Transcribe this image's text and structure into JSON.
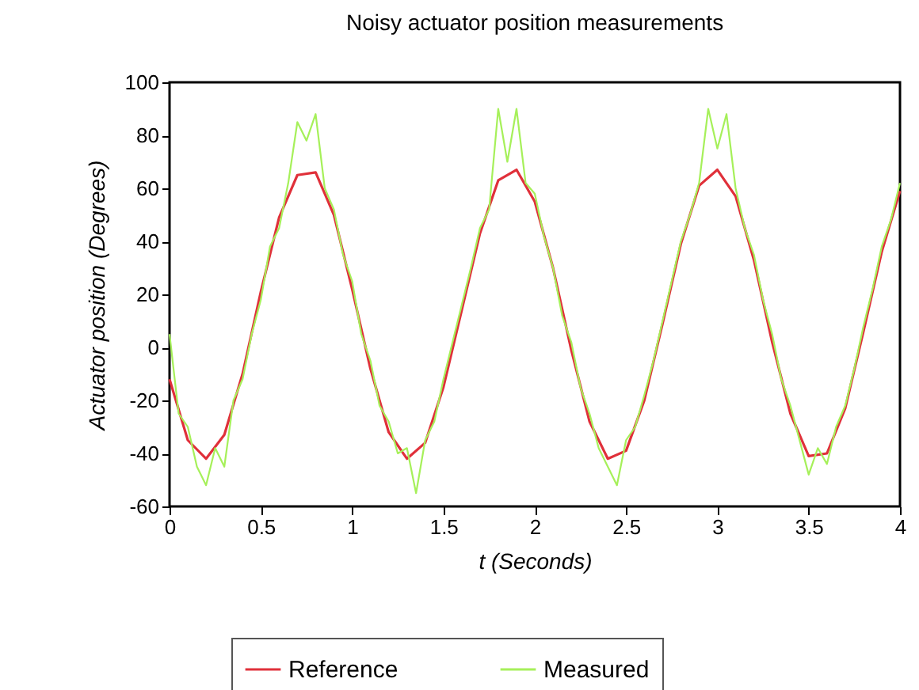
{
  "chart_data": {
    "type": "line",
    "title": "Noisy actuator position measurements",
    "xlabel": "t (Seconds)",
    "ylabel": "Actuator position (Degrees)",
    "xlim": [
      0,
      4
    ],
    "ylim": [
      -60,
      100
    ],
    "xticks": [
      0,
      0.5,
      1,
      1.5,
      2,
      2.5,
      3,
      3.5,
      4
    ],
    "yticks": [
      -60,
      -40,
      -20,
      0,
      20,
      40,
      60,
      80,
      100
    ],
    "legend": "bottom",
    "series": [
      {
        "name": "Reference",
        "color": "#e0303a",
        "x": [
          0,
          0.1,
          0.2,
          0.3,
          0.4,
          0.5,
          0.6,
          0.7,
          0.8,
          0.9,
          1,
          1.1,
          1.2,
          1.3,
          1.4,
          1.5,
          1.6,
          1.7,
          1.8,
          1.9,
          2,
          2.1,
          2.2,
          2.3,
          2.4,
          2.5,
          2.6,
          2.7,
          2.8,
          2.9,
          3,
          3.1,
          3.2,
          3.3,
          3.4,
          3.5,
          3.6,
          3.7,
          3.8,
          3.9,
          4
        ],
        "values": [
          -12,
          -35,
          -42,
          -33,
          -10,
          21,
          49,
          65,
          66,
          50,
          22,
          -8,
          -32,
          -42,
          -36,
          -15,
          14,
          43,
          63,
          67,
          55,
          30,
          -1,
          -28,
          -42,
          -39,
          -20,
          9,
          39,
          61,
          67,
          57,
          33,
          2,
          -25,
          -41,
          -40,
          -23,
          6,
          36,
          59
        ]
      },
      {
        "name": "Measured",
        "color": "#a6f05a",
        "x": [
          0,
          0.05,
          0.1,
          0.15,
          0.2,
          0.25,
          0.3,
          0.35,
          0.4,
          0.45,
          0.5,
          0.55,
          0.6,
          0.65,
          0.7,
          0.75,
          0.8,
          0.85,
          0.9,
          0.95,
          1,
          1.05,
          1.1,
          1.15,
          1.2,
          1.25,
          1.3,
          1.35,
          1.4,
          1.45,
          1.5,
          1.55,
          1.6,
          1.65,
          1.7,
          1.75,
          1.8,
          1.85,
          1.9,
          1.95,
          2,
          2.05,
          2.1,
          2.15,
          2.2,
          2.25,
          2.3,
          2.35,
          2.4,
          2.45,
          2.5,
          2.55,
          2.6,
          2.65,
          2.7,
          2.75,
          2.8,
          2.85,
          2.9,
          2.95,
          3,
          3.05,
          3.1,
          3.15,
          3.2,
          3.25,
          3.3,
          3.35,
          3.4,
          3.45,
          3.5,
          3.55,
          3.6,
          3.65,
          3.7,
          3.75,
          3.8,
          3.85,
          3.9,
          3.95,
          4
        ],
        "values": [
          5,
          -25,
          -30,
          -45,
          -52,
          -38,
          -45,
          -20,
          -12,
          5,
          18,
          38,
          45,
          62,
          85,
          78,
          88,
          60,
          52,
          35,
          25,
          5,
          -5,
          -22,
          -28,
          -40,
          -38,
          -55,
          -35,
          -28,
          -12,
          2,
          16,
          30,
          45,
          52,
          90,
          70,
          90,
          62,
          58,
          42,
          30,
          12,
          2,
          -15,
          -25,
          -38,
          -45,
          -52,
          -35,
          -30,
          -18,
          -5,
          10,
          25,
          40,
          50,
          62,
          90,
          75,
          88,
          60,
          45,
          35,
          18,
          5,
          -12,
          -22,
          -35,
          -48,
          -38,
          -44,
          -30,
          -22,
          -8,
          8,
          22,
          38,
          48,
          62
        ]
      }
    ]
  }
}
